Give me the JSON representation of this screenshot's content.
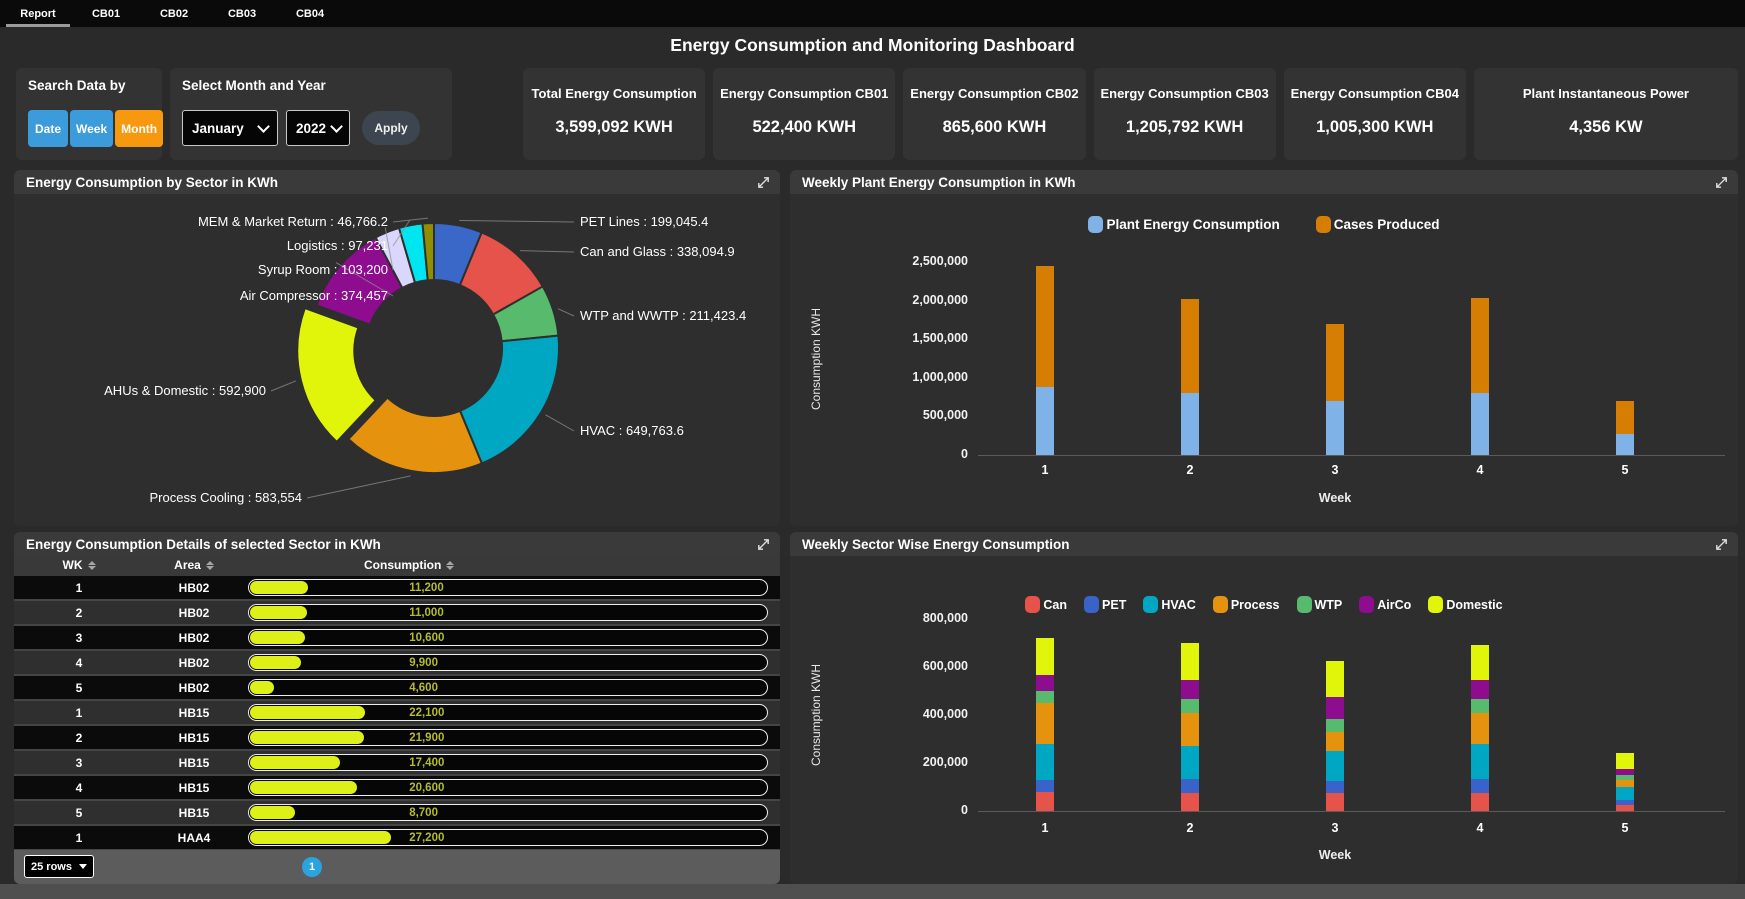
{
  "tabs": {
    "items": [
      "Report",
      "CB01",
      "CB02",
      "CB03",
      "CB04"
    ],
    "active": "Report"
  },
  "header": {
    "title": "Energy Consumption and Monitoring Dashboard"
  },
  "search_panel": {
    "title": "Search Data by",
    "buttons": [
      {
        "label": "Date",
        "color": "#3c9cdb"
      },
      {
        "label": "Week",
        "color": "#3c9cdb"
      },
      {
        "label": "Month",
        "color": "#f6990e"
      }
    ]
  },
  "filter_panel": {
    "title": "Select Month and Year",
    "month": "January",
    "year": "2022",
    "apply_label": "Apply"
  },
  "kpis": [
    {
      "label": "Total Energy Consumption",
      "value": "3,599,092 KWH"
    },
    {
      "label": "Energy Consumption CB01",
      "value": "522,400 KWH"
    },
    {
      "label": "Energy Consumption CB02",
      "value": "865,600 KWH"
    },
    {
      "label": "Energy Consumption CB03",
      "value": "1,205,792 KWH"
    },
    {
      "label": "Energy Consumption CB04",
      "value": "1,005,300 KWH"
    },
    {
      "label": "Plant Instantaneous Power",
      "value": "4,356 KW"
    }
  ],
  "icons": {
    "expand": "expand-diagonal-arrows",
    "sort": "sort-up-down-arrows",
    "chevron": "chevron-down"
  },
  "chart_data": [
    {
      "id": "sector-pie",
      "type": "pie",
      "donut": true,
      "title": "Energy Consumption by Sector in KWh",
      "slices": [
        {
          "label": "PET Lines",
          "value": 199045.4,
          "value_label": "199,045.4",
          "color": "#3a68c8"
        },
        {
          "label": "Can and Glass",
          "value": 338094.9,
          "value_label": "338,094.9",
          "color": "#e5534a"
        },
        {
          "label": "WTP and WWTP",
          "value": 211423.4,
          "value_label": "211,423.4",
          "color": "#57ba6d"
        },
        {
          "label": "HVAC",
          "value": 649763.6,
          "value_label": "649,763.6",
          "color": "#00a7c2"
        },
        {
          "label": "Process Cooling",
          "value": 583554,
          "value_label": "583,554",
          "color": "#e5920e"
        },
        {
          "label": "AHUs & Domestic",
          "value": 592900,
          "value_label": "592,900",
          "color": "#e1f50b",
          "exploded": true
        },
        {
          "label": "Air Compressor",
          "value": 374457,
          "value_label": "374,457",
          "color": "#8e0c8e"
        },
        {
          "label": "Syrup Room",
          "value": 103200,
          "value_label": "103,200",
          "color": "#d9d7fc"
        },
        {
          "label": "Logistics",
          "value": 97231,
          "value_label": "97,231",
          "color": "#00e6f0"
        },
        {
          "label": "MEM & Market Return",
          "value": 46766.2,
          "value_label": "46,766.2",
          "color": "#8f8f04"
        }
      ]
    },
    {
      "id": "weekly-plant",
      "type": "bar-stacked",
      "title": "Weekly Plant Energy Consumption in KWh",
      "categories": [
        "1",
        "2",
        "3",
        "4",
        "5"
      ],
      "xlabel": "Week",
      "ylabel": "Consumption KWH",
      "ylim": [
        0,
        2500000
      ],
      "grid": false,
      "legend_position": "top-center",
      "yticks": [
        {
          "value": 0,
          "label": "0"
        },
        {
          "value": 500000,
          "label": "500,000"
        },
        {
          "value": 1000000,
          "label": "1,000,000"
        },
        {
          "value": 1500000,
          "label": "1,500,000"
        },
        {
          "value": 2000000,
          "label": "2,000,000"
        },
        {
          "value": 2500000,
          "label": "2,500,000"
        }
      ],
      "series": [
        {
          "name": "Plant Energy Consumption",
          "color": "#7fb3e8",
          "values": [
            880000,
            800000,
            700000,
            800000,
            270000
          ]
        },
        {
          "name": "Cases Produced",
          "color": "#d67e03",
          "values": [
            1570000,
            1220000,
            1000000,
            1240000,
            430000
          ]
        }
      ]
    },
    {
      "id": "weekly-sector",
      "type": "bar-stacked",
      "title": "Weekly Sector Wise Energy Consumption",
      "categories": [
        "1",
        "2",
        "3",
        "4",
        "5"
      ],
      "xlabel": "Week",
      "ylabel": "Consumption KWH",
      "ylim": [
        0,
        800000
      ],
      "grid": false,
      "legend_position": "top-center",
      "yticks": [
        {
          "value": 0,
          "label": "0"
        },
        {
          "value": 200000,
          "label": "200,000"
        },
        {
          "value": 400000,
          "label": "400,000"
        },
        {
          "value": 600000,
          "label": "600,000"
        },
        {
          "value": 800000,
          "label": "800,000"
        }
      ],
      "series": [
        {
          "name": "Can",
          "color": "#e5534a",
          "values": [
            80000,
            75000,
            75000,
            75000,
            25000
          ]
        },
        {
          "name": "PET",
          "color": "#3a63c9",
          "values": [
            50000,
            60000,
            50000,
            60000,
            20000
          ]
        },
        {
          "name": "HVAC",
          "color": "#00a7c2",
          "values": [
            150000,
            135000,
            125000,
            145000,
            55000
          ]
        },
        {
          "name": "Process",
          "color": "#e5920e",
          "values": [
            170000,
            140000,
            80000,
            130000,
            30000
          ]
        },
        {
          "name": "WTP",
          "color": "#57ba6d",
          "values": [
            50000,
            55000,
            55000,
            55000,
            20000
          ]
        },
        {
          "name": "AirCo",
          "color": "#8e0c8e",
          "values": [
            65000,
            80000,
            90000,
            80000,
            25000
          ]
        },
        {
          "name": "Domestic",
          "color": "#e1f50b",
          "values": [
            155000,
            155000,
            150000,
            145000,
            65000
          ]
        }
      ]
    },
    {
      "id": "sector-details",
      "type": "table",
      "title": "Energy Consumption Details of selected Sector in KWh",
      "columns": [
        "WK",
        "Area",
        "Consumption"
      ],
      "bar_scale_max": 100000,
      "bar_color": "#ddf018",
      "rows": [
        {
          "wk": "1",
          "area": "HB02",
          "consumption": 11200,
          "consumption_label": "11,200"
        },
        {
          "wk": "2",
          "area": "HB02",
          "consumption": 11000,
          "consumption_label": "11,000"
        },
        {
          "wk": "3",
          "area": "HB02",
          "consumption": 10600,
          "consumption_label": "10,600"
        },
        {
          "wk": "4",
          "area": "HB02",
          "consumption": 9900,
          "consumption_label": "9,900"
        },
        {
          "wk": "5",
          "area": "HB02",
          "consumption": 4600,
          "consumption_label": "4,600"
        },
        {
          "wk": "1",
          "area": "HB15",
          "consumption": 22100,
          "consumption_label": "22,100"
        },
        {
          "wk": "2",
          "area": "HB15",
          "consumption": 21900,
          "consumption_label": "21,900"
        },
        {
          "wk": "3",
          "area": "HB15",
          "consumption": 17400,
          "consumption_label": "17,400"
        },
        {
          "wk": "4",
          "area": "HB15",
          "consumption": 20600,
          "consumption_label": "20,600"
        },
        {
          "wk": "5",
          "area": "HB15",
          "consumption": 8700,
          "consumption_label": "8,700"
        },
        {
          "wk": "1",
          "area": "HAA4",
          "consumption": 27200,
          "consumption_label": "27,200"
        }
      ],
      "footer": {
        "rows_per_page": "25 rows",
        "page": "1"
      }
    }
  ]
}
